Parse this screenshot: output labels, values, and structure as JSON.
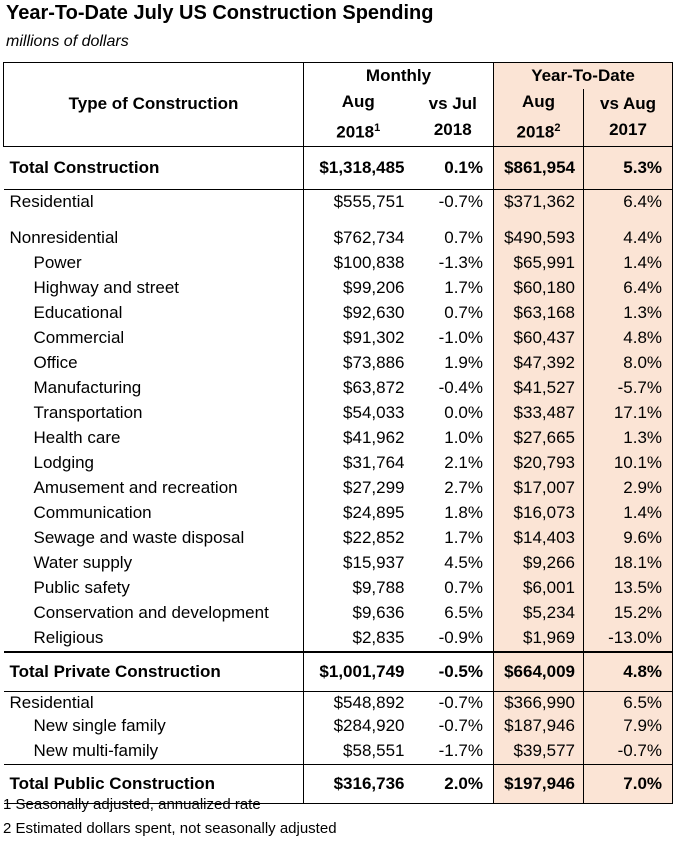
{
  "title": "Year-To-Date July US Construction Spending",
  "subtitle": "millions of dollars",
  "table": {
    "groups": [
      "Monthly",
      "Year-To-Date"
    ],
    "label_header": "Type of Construction",
    "columns": [
      {
        "line1": "Aug",
        "line2": "2018",
        "sup": "1"
      },
      {
        "line1": "vs Jul",
        "line2": "2018"
      },
      {
        "line1": "Aug",
        "line2": "2018",
        "sup": "2"
      },
      {
        "line1": "vs Aug",
        "line2": "2017"
      }
    ],
    "rows": [
      {
        "bold": true,
        "cells": [
          "Total Construction",
          "$1,318,485",
          "0.1%",
          "$861,954",
          "5.3%"
        ]
      },
      {
        "cells": [
          "Residential",
          "$555,751",
          "-0.7%",
          "$371,362",
          "6.4%"
        ]
      },
      {
        "cells": [
          "Nonresidential",
          "$762,734",
          "0.7%",
          "$490,593",
          "4.4%"
        ]
      },
      {
        "indent": true,
        "cells": [
          "Power",
          "$100,838",
          "-1.3%",
          "$65,991",
          "1.4%"
        ]
      },
      {
        "indent": true,
        "cells": [
          "Highway and street",
          "$99,206",
          "1.7%",
          "$60,180",
          "6.4%"
        ]
      },
      {
        "indent": true,
        "cells": [
          "Educational",
          "$92,630",
          "0.7%",
          "$63,168",
          "1.3%"
        ]
      },
      {
        "indent": true,
        "cells": [
          "Commercial",
          "$91,302",
          "-1.0%",
          "$60,437",
          "4.8%"
        ]
      },
      {
        "indent": true,
        "cells": [
          "Office",
          "$73,886",
          "1.9%",
          "$47,392",
          "8.0%"
        ]
      },
      {
        "indent": true,
        "cells": [
          "Manufacturing",
          "$63,872",
          "-0.4%",
          "$41,527",
          "-5.7%"
        ]
      },
      {
        "indent": true,
        "cells": [
          "Transportation",
          "$54,033",
          "0.0%",
          "$33,487",
          "17.1%"
        ]
      },
      {
        "indent": true,
        "cells": [
          "Health care",
          "$41,962",
          "1.0%",
          "$27,665",
          "1.3%"
        ]
      },
      {
        "indent": true,
        "cells": [
          "Lodging",
          "$31,764",
          "2.1%",
          "$20,793",
          "10.1%"
        ]
      },
      {
        "indent": true,
        "cells": [
          "Amusement and recreation",
          "$27,299",
          "2.7%",
          "$17,007",
          "2.9%"
        ]
      },
      {
        "indent": true,
        "cells": [
          "Communication",
          "$24,895",
          "1.8%",
          "$16,073",
          "1.4%"
        ]
      },
      {
        "indent": true,
        "cells": [
          "Sewage and waste disposal",
          "$22,852",
          "1.7%",
          "$14,403",
          "9.6%"
        ]
      },
      {
        "indent": true,
        "cells": [
          "Water supply",
          "$15,937",
          "4.5%",
          "$9,266",
          "18.1%"
        ]
      },
      {
        "indent": true,
        "cells": [
          "Public safety",
          "$9,788",
          "0.7%",
          "$6,001",
          "13.5%"
        ]
      },
      {
        "indent": true,
        "cells": [
          "Conservation and development",
          "$9,636",
          "6.5%",
          "$5,234",
          "15.2%"
        ]
      },
      {
        "indent": true,
        "cells": [
          "Religious",
          "$2,835",
          "-0.9%",
          "$1,969",
          "-13.0%"
        ]
      },
      {
        "bold": true,
        "cells": [
          "Total Private Construction",
          "$1,001,749",
          "-0.5%",
          "$664,009",
          "4.8%"
        ]
      },
      {
        "cells": [
          "Residential",
          "$548,892",
          "-0.7%",
          "$366,990",
          "6.5%"
        ]
      },
      {
        "indent": true,
        "cells": [
          "New single family",
          "$284,920",
          "-0.7%",
          "$187,946",
          "7.9%"
        ]
      },
      {
        "indent": true,
        "cells": [
          "New multi-family",
          "$58,551",
          "-1.7%",
          "$39,577",
          "-0.7%"
        ]
      },
      {
        "bold": true,
        "cells": [
          "Total Public Construction",
          "$316,736",
          "2.0%",
          "$197,946",
          "7.0%"
        ]
      }
    ]
  },
  "footnotes": [
    "1 Seasonally adjusted, annualized rate",
    "2 Estimated dollars spent, not seasonally adjusted"
  ]
}
